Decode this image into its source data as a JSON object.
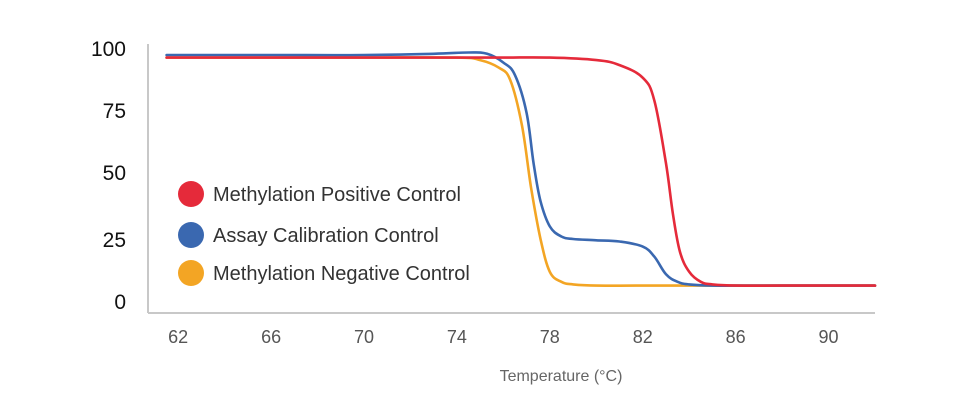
{
  "chart_data": {
    "type": "line",
    "title": "",
    "xlabel": "Temperature (°C)",
    "ylabel": "",
    "xlim": [
      60.7,
      92
    ],
    "ylim": [
      0,
      100
    ],
    "x_ticks": [
      "62",
      "66",
      "70",
      "74",
      "78",
      "82",
      "86",
      "90"
    ],
    "x_tick_values": [
      62,
      66,
      70,
      74,
      78,
      82,
      86,
      90
    ],
    "y_ticks": [
      "0",
      "25",
      "50",
      "75",
      "100"
    ],
    "y_tick_values": [
      0,
      25,
      50,
      75,
      100
    ],
    "grid": false,
    "legend_position": "bottom-left",
    "series": [
      {
        "name": "Methylation Positive Control",
        "color": "#e52a3a",
        "x": [
          61.5,
          66,
          70,
          74,
          76,
          78,
          80,
          81,
          82,
          82.5,
          83,
          83.3,
          83.6,
          84,
          84.5,
          85,
          86,
          88,
          92
        ],
        "y": [
          97,
          97,
          97,
          97,
          97,
          97,
          96,
          94,
          89,
          80,
          55,
          35,
          20,
          12,
          8,
          7,
          6.5,
          6.5,
          6.5
        ]
      },
      {
        "name": "Assay Calibration Control",
        "color": "#3a68b0",
        "x": [
          61.5,
          66,
          70,
          73,
          74.5,
          75.3,
          76,
          76.5,
          77,
          77.3,
          77.6,
          78,
          78.5,
          79,
          80,
          81,
          82,
          82.5,
          83,
          83.5,
          84,
          85,
          86,
          88,
          92
        ],
        "y": [
          98,
          98,
          98,
          98.5,
          99,
          98.5,
          95,
          90,
          75,
          55,
          40,
          30,
          26,
          25,
          24.5,
          24,
          22,
          18,
          11,
          8,
          7,
          6.5,
          6.5,
          6.5,
          6.5
        ]
      },
      {
        "name": "Methylation Negative Control",
        "color": "#f3a524",
        "x": [
          61.5,
          66,
          70,
          74,
          75,
          75.8,
          76.3,
          76.8,
          77.2,
          77.6,
          78,
          78.5,
          79,
          80,
          82,
          86,
          92
        ],
        "y": [
          97,
          97,
          97,
          97,
          96,
          93,
          88,
          70,
          45,
          25,
          12,
          8,
          7,
          6.5,
          6.5,
          6.5,
          6.5
        ]
      }
    ]
  }
}
